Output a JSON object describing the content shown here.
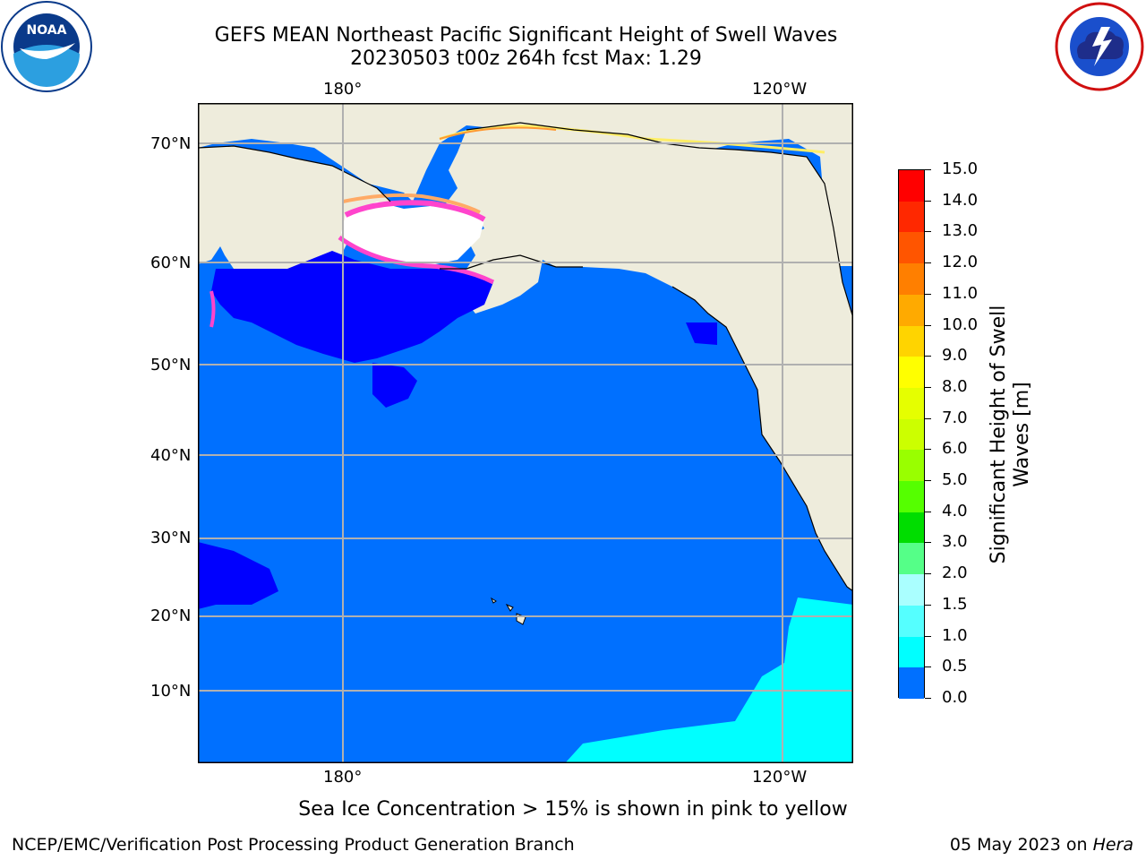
{
  "title": {
    "line1": "GEFS MEAN Northeast Pacific Significant Height of Swell Waves",
    "line2": "20230503 t00z 264h fcst   Max: 1.29"
  },
  "map": {
    "lon_labels_top": [
      "180°",
      "120°W"
    ],
    "lon_labels_bottom": [
      "180°",
      "120°W"
    ],
    "lat_labels": [
      "70°N",
      "60°N",
      "50°N",
      "40°N",
      "30°N",
      "20°N",
      "10°N"
    ],
    "colors": {
      "ocean_base": "#0070ff",
      "ocean_low": "#0000ff",
      "ocean_mid": "#00ffff",
      "land": "#eeecdc",
      "grid": "#b0b0b0",
      "ice_pink": "#ff44cc",
      "ice_orange": "#ffaa66",
      "ice_yellow": "#ffee66"
    }
  },
  "colorbar": {
    "label_line1": "Significant Height of Swell",
    "label_line2": "Waves [m]",
    "ticks": [
      "15.0",
      "14.0",
      "13.0",
      "12.0",
      "11.0",
      "10.0",
      "9.0",
      "8.0",
      "7.0",
      "6.0",
      "5.0",
      "4.0",
      "3.0",
      "2.0",
      "1.5",
      "1.0",
      "0.5",
      "0.0"
    ],
    "colors": [
      "#ff0000",
      "#ff2800",
      "#ff5500",
      "#ff7f00",
      "#ffaa00",
      "#ffd400",
      "#ffff00",
      "#e5ff00",
      "#ccff00",
      "#99ff00",
      "#55ff00",
      "#00dd00",
      "#55ff88",
      "#aaffff",
      "#55ffff",
      "#00ffff",
      "#0070ff",
      "#0000ff"
    ]
  },
  "note": "Sea Ice Concentration > 15% is shown in pink to yellow",
  "footer": {
    "left": "NCEP/EMC/Verification Post Processing Product Generation Branch",
    "right_date": "05 May 2023 on ",
    "right_host": "Hera"
  },
  "logos": {
    "left": "NOAA",
    "left_ring": "NATIONAL OCEANIC AND ATMOSPHERIC ADMINISTRATION · U.S. DEPARTMENT OF COMMERCE",
    "right_ring": "NATIONAL WEATHER SERVICE"
  }
}
